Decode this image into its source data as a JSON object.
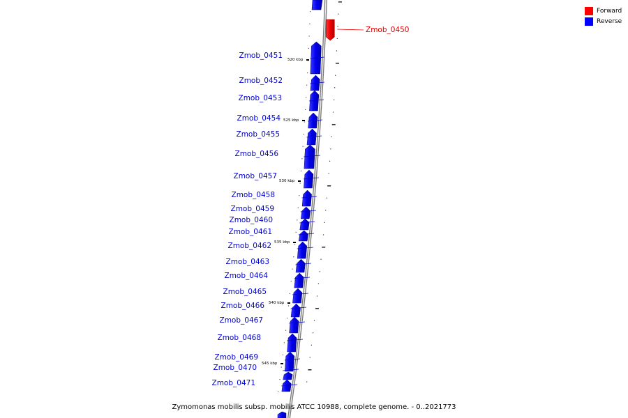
{
  "legend": {
    "forward_label": "Forward",
    "reverse_label": "Reverse",
    "forward_color": "#ff0000",
    "reverse_color": "#0000ff"
  },
  "caption": "Zymomonas mobilis subsp. mobilis ATCC 10988, complete genome. - 0..2021773",
  "genes": [
    {
      "name": "Zmob_0450",
      "strand": "forward"
    },
    {
      "name": "Zmob_0451",
      "strand": "reverse"
    },
    {
      "name": "Zmob_0452",
      "strand": "reverse"
    },
    {
      "name": "Zmob_0453",
      "strand": "reverse"
    },
    {
      "name": "Zmob_0454",
      "strand": "reverse"
    },
    {
      "name": "Zmob_0455",
      "strand": "reverse"
    },
    {
      "name": "Zmob_0456",
      "strand": "reverse"
    },
    {
      "name": "Zmob_0457",
      "strand": "reverse"
    },
    {
      "name": "Zmob_0458",
      "strand": "reverse"
    },
    {
      "name": "Zmob_0459",
      "strand": "reverse"
    },
    {
      "name": "Zmob_0460",
      "strand": "reverse"
    },
    {
      "name": "Zmob_0461",
      "strand": "reverse"
    },
    {
      "name": "Zmob_0462",
      "strand": "reverse"
    },
    {
      "name": "Zmob_0463",
      "strand": "reverse"
    },
    {
      "name": "Zmob_0464",
      "strand": "reverse"
    },
    {
      "name": "Zmob_0465",
      "strand": "reverse"
    },
    {
      "name": "Zmob_0466",
      "strand": "reverse"
    },
    {
      "name": "Zmob_0467",
      "strand": "reverse"
    },
    {
      "name": "Zmob_0468",
      "strand": "reverse"
    },
    {
      "name": "Zmob_0469",
      "strand": "reverse"
    },
    {
      "name": "Zmob_0470",
      "strand": "reverse"
    },
    {
      "name": "Zmob_0471",
      "strand": "reverse"
    }
  ],
  "scale_ticks": [
    "520 kbp",
    "525 kbp",
    "530 kbp",
    "535 kbp",
    "540 kbp",
    "545 kbp"
  ]
}
